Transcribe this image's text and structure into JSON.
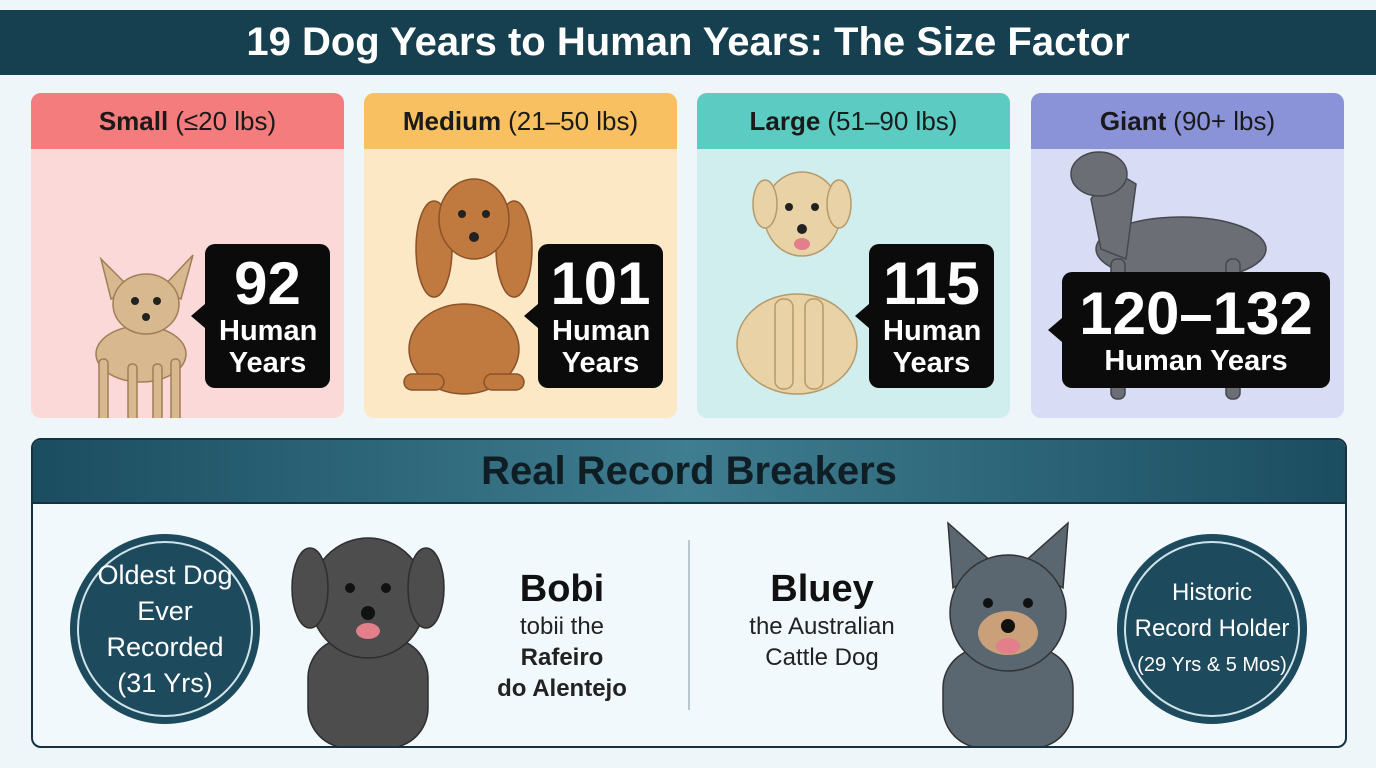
{
  "header": {
    "title": "19 Dog Years to Human Years: The Size Factor"
  },
  "cards": [
    {
      "size": "Small",
      "range": "(≤20 lbs)",
      "value": "92",
      "unit": "Human Years"
    },
    {
      "size": "Medium",
      "range": "(21–50 lbs)",
      "value": "101",
      "unit": "Human Years"
    },
    {
      "size": "Large",
      "range": "(51–90 lbs)",
      "value": "115",
      "unit": "Human Years"
    },
    {
      "size": "Giant",
      "range": "(90+ lbs)",
      "value": "120–132",
      "unit": "Human Years"
    }
  ],
  "records": {
    "title": "Real Record Breakers",
    "left_badge": [
      "Oldest Dog",
      "Ever Recorded",
      "(31 Yrs)"
    ],
    "bobi": {
      "name": "Bobi",
      "desc": [
        "tobii the",
        "Rafeiro",
        "do Alentejo"
      ]
    },
    "bluey": {
      "name": "Bluey",
      "desc": [
        "the Australian",
        "Cattle Dog"
      ]
    },
    "right_badge": [
      "Historic",
      "Record Holder",
      "(29 Yrs & 5 Mos)"
    ]
  }
}
